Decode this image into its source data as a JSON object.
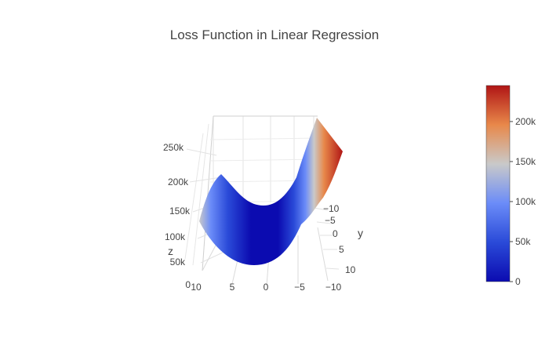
{
  "chart_data": {
    "type": "surface",
    "title": "Loss Function in Linear Regression",
    "axes": {
      "x": {
        "label": "",
        "range": [
          -10,
          10
        ],
        "tick_values": [
          -10,
          -5,
          0,
          5,
          10
        ],
        "tick_labels": [
          "−10",
          "−5",
          "0",
          "5",
          "10"
        ]
      },
      "y": {
        "label": "y",
        "range": [
          -10,
          10
        ],
        "tick_values": [
          -10,
          -5,
          0,
          5,
          10
        ],
        "tick_labels": [
          "−10",
          "−5",
          "0",
          "5",
          "10"
        ]
      },
      "z": {
        "label": "z",
        "range": [
          0,
          250000
        ],
        "tick_values": [
          0,
          50000,
          100000,
          150000,
          200000,
          250000
        ],
        "tick_labels": [
          "0",
          "50k",
          "100k",
          "150k",
          "200k",
          "250k"
        ]
      }
    },
    "surface_samples": {
      "x": [
        -10,
        -5,
        0,
        5,
        10
      ],
      "y": [
        -10,
        -5,
        0,
        5,
        10
      ],
      "z": [
        [
          60000,
          40000,
          60000,
          100000,
          160000
        ],
        [
          40000,
          15000,
          20000,
          55000,
          110000
        ],
        [
          45000,
          5000,
          0,
          35000,
          95000
        ],
        [
          90000,
          35000,
          20000,
          45000,
          120000
        ],
        [
          160000,
          105000,
          85000,
          130000,
          240000
        ]
      ]
    },
    "colorscale": {
      "stops": [
        "#0b0bb0",
        "#2a4ad8",
        "#6b8cf8",
        "#c9c9c9",
        "#e8884a",
        "#b01515"
      ],
      "range": [
        0,
        245000
      ],
      "tick_values": [
        0,
        50000,
        100000,
        150000,
        200000
      ],
      "tick_labels": [
        "0",
        "50k",
        "100k",
        "150k",
        "200k"
      ]
    },
    "grid": true,
    "legend": "colorbar-right"
  }
}
